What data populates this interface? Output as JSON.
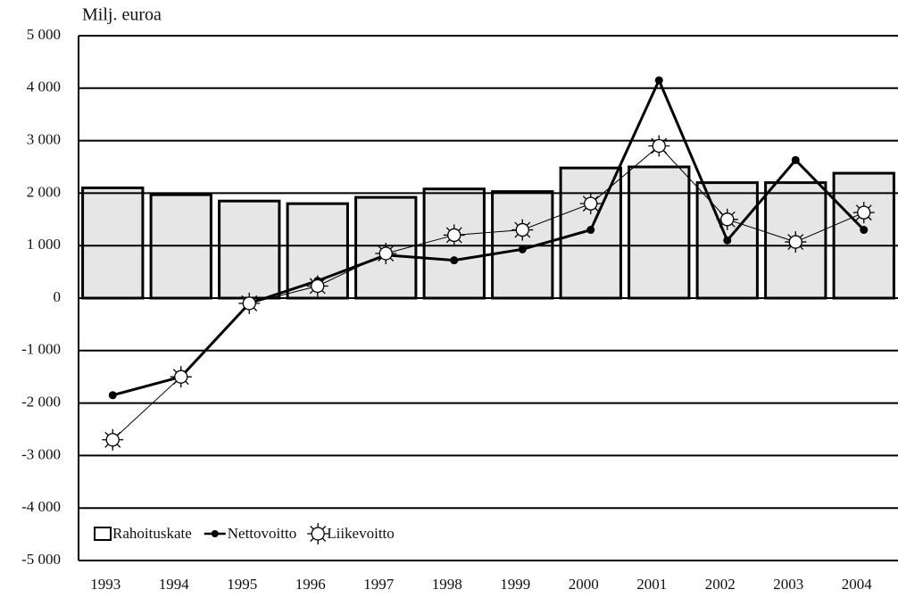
{
  "chart_data": {
    "type": "bar-line",
    "y_label": "Milj. euroa",
    "categories": [
      "1993",
      "1994",
      "1995",
      "1996",
      "1997",
      "1998",
      "1999",
      "2000",
      "2001",
      "2002",
      "2003",
      "2004"
    ],
    "series": [
      {
        "name": "Rahoituskate",
        "kind": "bar",
        "color": "#e6e6e6",
        "values": [
          2100,
          1970,
          1850,
          1800,
          1920,
          2080,
          2030,
          2480,
          2500,
          2200,
          2200,
          2380
        ]
      },
      {
        "name": "Nettovoitto",
        "kind": "line",
        "color": "#000000",
        "values": [
          -1850,
          -1500,
          -100,
          330,
          820,
          720,
          930,
          1300,
          4150,
          1100,
          2630,
          1300
        ]
      },
      {
        "name": "Liikevoitto",
        "kind": "line-sun",
        "color": "#000000",
        "values": [
          -2700,
          -1500,
          -100,
          230,
          850,
          1200,
          1300,
          1800,
          2900,
          1500,
          1070,
          1630
        ]
      }
    ],
    "ylim": [
      -5000,
      5000
    ],
    "yticks": [
      {
        "value": -5000,
        "label": "-5 000"
      },
      {
        "value": -4000,
        "label": "-4 000"
      },
      {
        "value": -3000,
        "label": "-3 000"
      },
      {
        "value": -2000,
        "label": "-2 000"
      },
      {
        "value": -1000,
        "label": "-1 000"
      },
      0,
      {
        "value": 1000,
        "label": "1 000"
      },
      {
        "value": 2000,
        "label": "2 000"
      },
      {
        "value": 3000,
        "label": "3 000"
      },
      {
        "value": 4000,
        "label": "4 000"
      },
      {
        "value": 5000,
        "label": "5 000"
      }
    ],
    "grid": true,
    "legend": "lower left"
  }
}
